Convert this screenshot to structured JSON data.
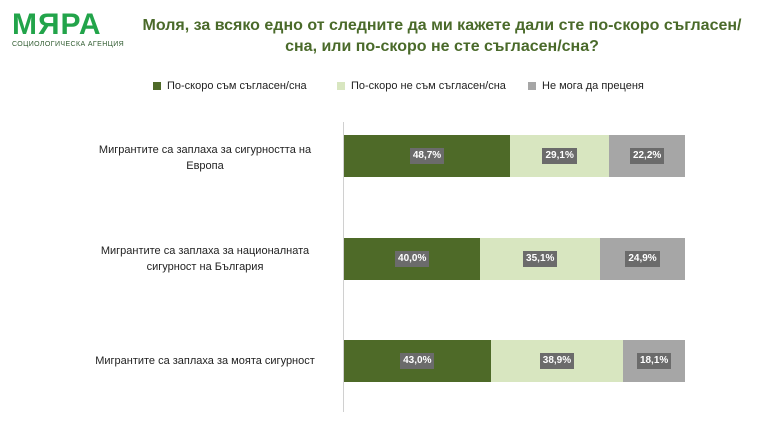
{
  "logo": {
    "mark": "МЯРА",
    "subtitle": "СОЦИОЛОГИЧЕСКА АГЕНЦИЯ"
  },
  "colors": {
    "agree": "#4e6a28",
    "disagree": "#d8e6c0",
    "cant_judge": "#a6a6a6",
    "logo": "#22a44a",
    "title": "#4a6a2a"
  },
  "chart_data": {
    "type": "bar",
    "orientation": "horizontal",
    "stacked": "100%",
    "title": "Моля, за всяко едно от следните да ми кажете дали сте по-скоро съгласен/сна, или по-скоро не сте съгласен/сна?",
    "categories": [
      "Мигрантите са заплаха за сигурността на Европа",
      "Мигрантите са заплаха за националната сигурност на България",
      "Мигрантите са заплаха за моята сигурност"
    ],
    "series": [
      {
        "name": "По-скоро съм съгласен/сна",
        "values": [
          48.7,
          40.0,
          43.0
        ],
        "labels": [
          "48,7%",
          "40,0%",
          "43,0%"
        ]
      },
      {
        "name": "По-скоро не съм съгласен/сна",
        "values": [
          29.1,
          35.1,
          38.9
        ],
        "labels": [
          "29,1%",
          "35,1%",
          "38,9%"
        ]
      },
      {
        "name": "Не мога да преценя",
        "values": [
          22.2,
          24.9,
          18.1
        ],
        "labels": [
          "22,2%",
          "24,9%",
          "18,1%"
        ]
      }
    ],
    "legend_position": "top",
    "grid": false
  }
}
